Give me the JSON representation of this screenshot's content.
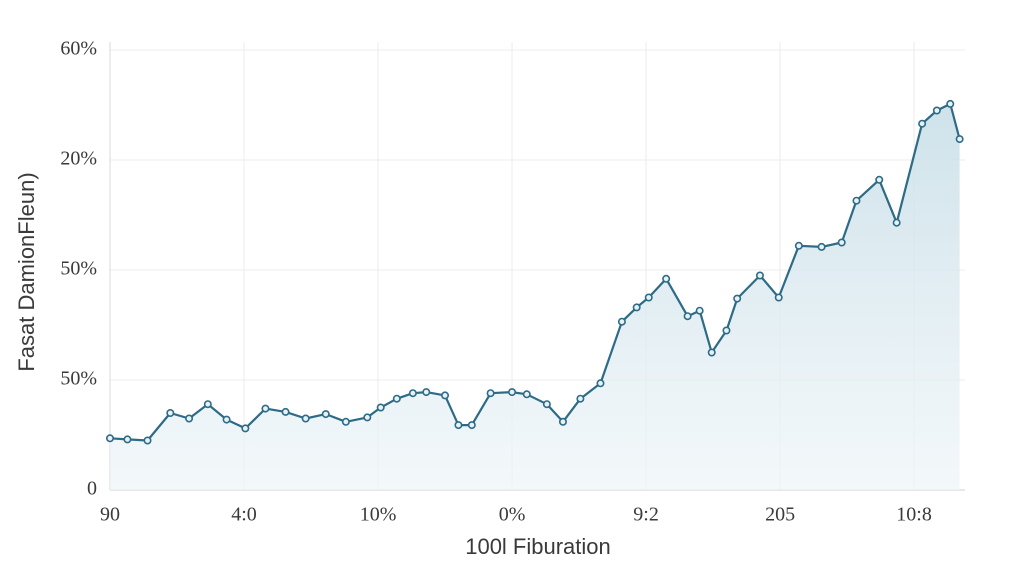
{
  "chart_data": {
    "type": "line",
    "x_label": "100l Fiburation",
    "y_label": "Fasat DamionFleun)",
    "color": "#2d6b86",
    "area": true,
    "grid": true,
    "xlim": [
      0,
      63.8
    ],
    "ylim": [
      0,
      40
    ],
    "xticks": [
      {
        "value": 0,
        "label": "90"
      },
      {
        "value": 10,
        "label": "4:0"
      },
      {
        "value": 20,
        "label": "10%"
      },
      {
        "value": 30,
        "label": "0%"
      },
      {
        "value": 40,
        "label": "9:2"
      },
      {
        "value": 50,
        "label": "205"
      },
      {
        "value": 60,
        "label": "10:8"
      }
    ],
    "yticks": [
      0,
      {
        "value": 10,
        "label": "50%"
      },
      {
        "value": 20,
        "label": "50%"
      },
      {
        "value": 30,
        "label": "20%"
      },
      {
        "value": 40,
        "label": "60%"
      }
    ],
    "x": [
      0,
      1.3,
      2.8,
      4.5,
      5.9,
      7.3,
      8.7,
      10.1,
      11.6,
      13.1,
      14.6,
      16.1,
      17.6,
      19.2,
      20.2,
      21.4,
      22.6,
      23.6,
      25.0,
      26.0,
      27.0,
      28.4,
      30.0,
      31.1,
      32.6,
      33.8,
      35.1,
      36.6,
      38.2,
      39.3,
      40.2,
      41.5,
      43.1,
      44.0,
      44.9,
      46.0,
      46.8,
      48.5,
      49.9,
      51.4,
      53.1,
      54.6,
      55.7,
      57.4,
      58.7,
      60.6,
      61.7,
      62.7,
      63.4
    ],
    "values": [
      4.7,
      4.6,
      4.5,
      7.0,
      6.5,
      7.8,
      6.4,
      5.6,
      7.4,
      7.1,
      6.5,
      6.9,
      6.2,
      6.6,
      7.5,
      8.3,
      8.8,
      8.9,
      8.6,
      5.9,
      5.9,
      8.8,
      8.9,
      8.7,
      7.8,
      6.2,
      8.3,
      9.7,
      15.3,
      16.6,
      17.5,
      19.2,
      15.8,
      16.3,
      12.5,
      14.5,
      17.4,
      19.5,
      17.5,
      22.2,
      22.1,
      22.5,
      26.3,
      28.2,
      24.3,
      33.3,
      34.5,
      35.1,
      31.9
    ]
  }
}
